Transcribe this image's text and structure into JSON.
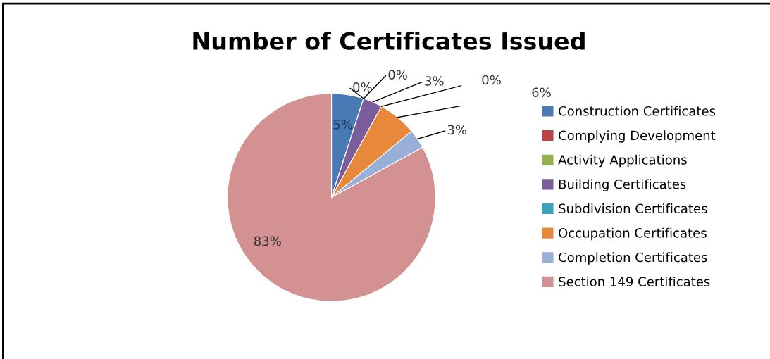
{
  "chart_data": {
    "type": "pie",
    "title": "Number of Certificates Issued",
    "categories": [
      "Construction Certificates",
      "Complying Development",
      "Activity Applications",
      "Building Certificates",
      "Subdivision Certificates",
      "Occupation Certificates",
      "Completion Certificates",
      "Section 149 Certificates"
    ],
    "values": [
      5,
      0,
      0,
      3,
      0,
      6,
      3,
      83
    ],
    "value_labels": [
      "5%",
      "0%",
      "0%",
      "3%",
      "0%",
      "6%",
      "3%",
      "83%"
    ],
    "colors": [
      "#4a7ab5",
      "#b94441",
      "#93b150",
      "#7b5d9b",
      "#3fa2bd",
      "#e8883a",
      "#98b0d8",
      "#d49192"
    ],
    "legend": "right"
  }
}
